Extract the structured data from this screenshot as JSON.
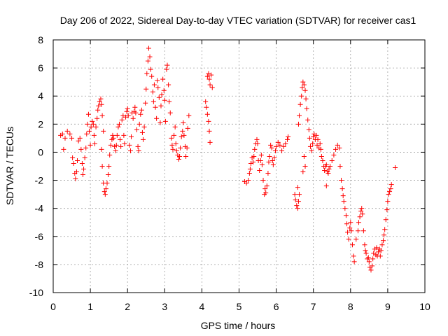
{
  "chart_data": {
    "type": "scatter",
    "title": "Day 206 of 2022, Sidereal Day-to-day VTEC variation (SDTVAR) for receiver cas1",
    "xlabel": "GPS time / hours",
    "ylabel": "SDTVAR / TECUs",
    "xlim": [
      0,
      10
    ],
    "ylim": [
      -10,
      8
    ],
    "xticks": [
      "0",
      "1",
      "2",
      "3",
      "4",
      "5",
      "6",
      "7",
      "8",
      "9",
      "10"
    ],
    "yticks": [
      "-10",
      "-8",
      "-6",
      "-4",
      "-2",
      "0",
      "2",
      "4",
      "6",
      "8"
    ],
    "grid": true,
    "marker": "+",
    "color": "#ff0000",
    "series": [
      {
        "name": "SDTVAR",
        "points": [
          [
            0.2,
            1.2
          ],
          [
            0.25,
            1.3
          ],
          [
            0.28,
            0.2
          ],
          [
            0.32,
            1.0
          ],
          [
            0.38,
            1.5
          ],
          [
            0.45,
            1.3
          ],
          [
            0.5,
            1.0
          ],
          [
            0.52,
            -0.4
          ],
          [
            0.55,
            -0.8
          ],
          [
            0.58,
            -1.5
          ],
          [
            0.6,
            -1.9
          ],
          [
            0.63,
            -1.4
          ],
          [
            0.65,
            -0.6
          ],
          [
            0.68,
            0.8
          ],
          [
            0.72,
            1.0
          ],
          [
            0.75,
            0.2
          ],
          [
            0.78,
            -0.8
          ],
          [
            0.8,
            -1.6
          ],
          [
            0.82,
            -1.2
          ],
          [
            0.85,
            -0.4
          ],
          [
            0.88,
            0.3
          ],
          [
            0.9,
            1.3
          ],
          [
            0.92,
            2.0
          ],
          [
            0.95,
            2.7
          ],
          [
            0.97,
            1.5
          ],
          [
            1.0,
            0.5
          ],
          [
            1.02,
            1.8
          ],
          [
            1.05,
            2.2
          ],
          [
            1.08,
            2.0
          ],
          [
            1.1,
            1.2
          ],
          [
            1.12,
            0.6
          ],
          [
            1.15,
            1.8
          ],
          [
            1.18,
            2.4
          ],
          [
            1.2,
            3.0
          ],
          [
            1.22,
            3.3
          ],
          [
            1.25,
            3.6
          ],
          [
            1.28,
            3.8
          ],
          [
            1.3,
            3.4
          ],
          [
            1.32,
            2.6
          ],
          [
            1.35,
            1.5
          ],
          [
            1.3,
            0.2
          ],
          [
            1.32,
            -1.0
          ],
          [
            1.35,
            -2.2
          ],
          [
            1.38,
            -2.8
          ],
          [
            1.4,
            -3.0
          ],
          [
            1.42,
            -2.6
          ],
          [
            1.45,
            -2.2
          ],
          [
            1.48,
            -1.6
          ],
          [
            1.5,
            -1.0
          ],
          [
            1.52,
            -0.2
          ],
          [
            1.55,
            0.5
          ],
          [
            1.58,
            0.9
          ],
          [
            1.6,
            1.2
          ],
          [
            1.62,
            1.0
          ],
          [
            1.65,
            0.4
          ],
          [
            1.68,
            0.1
          ],
          [
            1.7,
            0.5
          ],
          [
            1.72,
            1.2
          ],
          [
            1.75,
            1.8
          ],
          [
            1.78,
            2.0
          ],
          [
            1.8,
            0.9
          ],
          [
            1.82,
            0.4
          ],
          [
            1.85,
            2.3
          ],
          [
            1.88,
            2.6
          ],
          [
            1.9,
            1.2
          ],
          [
            1.92,
            0.6
          ],
          [
            1.95,
            2.5
          ],
          [
            1.98,
            2.9
          ],
          [
            2.0,
            3.1
          ],
          [
            2.02,
            2.6
          ],
          [
            2.05,
            0.5
          ],
          [
            2.08,
            0.1
          ],
          [
            2.1,
            1.1
          ],
          [
            2.12,
            2.8
          ],
          [
            2.15,
            2.4
          ],
          [
            2.18,
            2.9
          ],
          [
            2.2,
            3.2
          ],
          [
            2.22,
            2.8
          ],
          [
            2.25,
            1.6
          ],
          [
            2.28,
            0.4
          ],
          [
            2.3,
            0.1
          ],
          [
            2.32,
            2.0
          ],
          [
            2.35,
            2.7
          ],
          [
            2.38,
            3.0
          ],
          [
            2.4,
            1.4
          ],
          [
            2.42,
            0.9
          ],
          [
            2.45,
            1.8
          ],
          [
            2.48,
            3.5
          ],
          [
            2.5,
            4.5
          ],
          [
            2.52,
            5.6
          ],
          [
            2.55,
            6.5
          ],
          [
            2.57,
            7.4
          ],
          [
            2.6,
            6.8
          ],
          [
            2.62,
            5.9
          ],
          [
            2.65,
            5.4
          ],
          [
            2.68,
            4.3
          ],
          [
            2.7,
            3.6
          ],
          [
            2.72,
            4.8
          ],
          [
            2.75,
            3.2
          ],
          [
            2.78,
            2.4
          ],
          [
            2.8,
            5.1
          ],
          [
            2.82,
            4.6
          ],
          [
            2.85,
            3.9
          ],
          [
            2.88,
            2.1
          ],
          [
            2.9,
            3.3
          ],
          [
            2.92,
            4.1
          ],
          [
            2.95,
            5.2
          ],
          [
            2.98,
            4.4
          ],
          [
            3.0,
            3.7
          ],
          [
            3.02,
            2.2
          ],
          [
            3.05,
            5.9
          ],
          [
            3.07,
            6.2
          ],
          [
            3.1,
            4.8
          ],
          [
            3.12,
            3.6
          ],
          [
            3.15,
            2.8
          ],
          [
            3.18,
            1.0
          ],
          [
            3.2,
            0.5
          ],
          [
            3.22,
            0.2
          ],
          [
            3.25,
            1.2
          ],
          [
            3.28,
            1.8
          ],
          [
            3.3,
            0.6
          ],
          [
            3.32,
            0.1
          ],
          [
            3.35,
            -0.2
          ],
          [
            3.38,
            -0.5
          ],
          [
            3.4,
            -0.3
          ],
          [
            3.42,
            0.3
          ],
          [
            3.45,
            1.1
          ],
          [
            3.48,
            1.5
          ],
          [
            3.5,
            2.1
          ],
          [
            3.52,
            1.2
          ],
          [
            3.55,
            0.4
          ],
          [
            3.57,
            -0.3
          ],
          [
            3.6,
            0.3
          ],
          [
            3.62,
            1.7
          ],
          [
            3.65,
            2.6
          ],
          [
            4.1,
            3.6
          ],
          [
            4.12,
            3.2
          ],
          [
            4.15,
            2.7
          ],
          [
            4.18,
            2.2
          ],
          [
            4.2,
            1.5
          ],
          [
            4.22,
            0.7
          ],
          [
            4.15,
            5.4
          ],
          [
            4.18,
            5.6
          ],
          [
            4.2,
            5.2
          ],
          [
            4.22,
            4.8
          ],
          [
            4.25,
            5.5
          ],
          [
            4.28,
            4.6
          ],
          [
            5.15,
            -2.1
          ],
          [
            5.2,
            -2.2
          ],
          [
            5.25,
            -2.0
          ],
          [
            5.28,
            -1.5
          ],
          [
            5.3,
            -1.2
          ],
          [
            5.32,
            -0.8
          ],
          [
            5.35,
            -0.4
          ],
          [
            5.38,
            -0.7
          ],
          [
            5.4,
            -0.3
          ],
          [
            5.42,
            0.2
          ],
          [
            5.45,
            0.6
          ],
          [
            5.48,
            0.9
          ],
          [
            5.5,
            0.6
          ],
          [
            5.52,
            -0.6
          ],
          [
            5.55,
            -1.3
          ],
          [
            5.58,
            -0.6
          ],
          [
            5.6,
            -0.2
          ],
          [
            5.62,
            -0.9
          ],
          [
            5.65,
            -2.0
          ],
          [
            5.68,
            -3.0
          ],
          [
            5.7,
            -2.6
          ],
          [
            5.72,
            -2.9
          ],
          [
            5.75,
            -2.4
          ],
          [
            5.78,
            -1.5
          ],
          [
            5.8,
            -0.7
          ],
          [
            5.82,
            -0.3
          ],
          [
            5.85,
            0.5
          ],
          [
            5.88,
            0.3
          ],
          [
            5.9,
            -0.6
          ],
          [
            5.92,
            -0.9
          ],
          [
            5.95,
            -0.4
          ],
          [
            5.98,
            0.1
          ],
          [
            6.0,
            0.4
          ],
          [
            6.05,
            0.7
          ],
          [
            6.1,
            0.5
          ],
          [
            6.15,
            0.1
          ],
          [
            6.2,
            0.4
          ],
          [
            6.25,
            0.6
          ],
          [
            6.3,
            0.9
          ],
          [
            6.32,
            1.1
          ],
          [
            6.5,
            -3.0
          ],
          [
            6.52,
            -3.4
          ],
          [
            6.55,
            -3.8
          ],
          [
            6.58,
            -4.0
          ],
          [
            6.6,
            -3.5
          ],
          [
            6.62,
            -3.0
          ],
          [
            6.58,
            -2.5
          ],
          [
            6.6,
            2.0
          ],
          [
            6.62,
            2.6
          ],
          [
            6.65,
            3.4
          ],
          [
            6.68,
            4.0
          ],
          [
            6.7,
            4.6
          ],
          [
            6.72,
            5.0
          ],
          [
            6.75,
            4.8
          ],
          [
            6.78,
            4.4
          ],
          [
            6.8,
            3.8
          ],
          [
            6.82,
            3.1
          ],
          [
            6.85,
            2.3
          ],
          [
            6.88,
            1.6
          ],
          [
            6.9,
            1.0
          ],
          [
            6.92,
            0.4
          ],
          [
            6.95,
            0.1
          ],
          [
            6.98,
            0.6
          ],
          [
            7.0,
            1.1
          ],
          [
            7.02,
            1.3
          ],
          [
            7.05,
            0.9
          ],
          [
            7.08,
            1.2
          ],
          [
            7.1,
            0.5
          ],
          [
            7.12,
            0.9
          ],
          [
            7.15,
            0.3
          ],
          [
            7.18,
            0.6
          ],
          [
            7.2,
            0.2
          ],
          [
            7.22,
            -0.3
          ],
          [
            7.25,
            -0.6
          ],
          [
            7.28,
            -1.0
          ],
          [
            7.3,
            -1.3
          ],
          [
            7.32,
            -1.0
          ],
          [
            7.35,
            -0.9
          ],
          [
            7.38,
            -1.4
          ],
          [
            7.4,
            -1.5
          ],
          [
            7.42,
            -1.2
          ],
          [
            7.45,
            -1.0
          ],
          [
            6.75,
            -0.3
          ],
          [
            6.78,
            -1.0
          ],
          [
            6.72,
            -1.4
          ],
          [
            7.35,
            -2.4
          ],
          [
            7.5,
            -0.6
          ],
          [
            7.55,
            -0.2
          ],
          [
            7.6,
            0.2
          ],
          [
            7.65,
            0.5
          ],
          [
            7.7,
            0.3
          ],
          [
            7.72,
            -1.0
          ],
          [
            7.75,
            -2.0
          ],
          [
            7.78,
            -2.6
          ],
          [
            7.8,
            -3.1
          ],
          [
            7.82,
            -3.5
          ],
          [
            7.85,
            -4.0
          ],
          [
            7.88,
            -4.5
          ],
          [
            7.9,
            -5.1
          ],
          [
            7.92,
            -5.7
          ],
          [
            7.95,
            -6.2
          ],
          [
            7.98,
            -5.4
          ],
          [
            8.0,
            -5.0
          ],
          [
            8.02,
            -5.6
          ],
          [
            8.05,
            -6.6
          ],
          [
            8.08,
            -7.4
          ],
          [
            8.1,
            -7.8
          ],
          [
            8.15,
            -6.2
          ],
          [
            8.2,
            -5.6
          ],
          [
            8.22,
            -5.0
          ],
          [
            8.25,
            -4.6
          ],
          [
            8.28,
            -4.2
          ],
          [
            8.3,
            -4.0
          ],
          [
            8.32,
            -4.4
          ],
          [
            8.35,
            -5.6
          ],
          [
            8.38,
            -6.6
          ],
          [
            8.4,
            -7.0
          ],
          [
            8.42,
            -7.2
          ],
          [
            8.45,
            -7.6
          ],
          [
            8.48,
            -7.5
          ],
          [
            8.5,
            -7.8
          ],
          [
            8.52,
            -8.2
          ],
          [
            8.55,
            -8.4
          ],
          [
            8.58,
            -8.1
          ],
          [
            8.6,
            -7.6
          ],
          [
            8.62,
            -7.2
          ],
          [
            8.65,
            -6.9
          ],
          [
            8.68,
            -7.3
          ],
          [
            8.7,
            -6.8
          ],
          [
            8.72,
            -7.4
          ],
          [
            8.75,
            -7.1
          ],
          [
            8.78,
            -6.9
          ],
          [
            8.8,
            -7.4
          ],
          [
            8.82,
            -7.0
          ],
          [
            8.85,
            -6.6
          ],
          [
            8.88,
            -6.3
          ],
          [
            8.9,
            -5.9
          ],
          [
            8.92,
            -5.5
          ],
          [
            8.95,
            -4.8
          ],
          [
            8.98,
            -4.1
          ],
          [
            9.0,
            -3.5
          ],
          [
            9.02,
            -3.0
          ],
          [
            9.05,
            -2.8
          ],
          [
            9.08,
            -2.6
          ],
          [
            9.1,
            -2.3
          ],
          [
            9.2,
            -1.1
          ]
        ]
      }
    ]
  }
}
